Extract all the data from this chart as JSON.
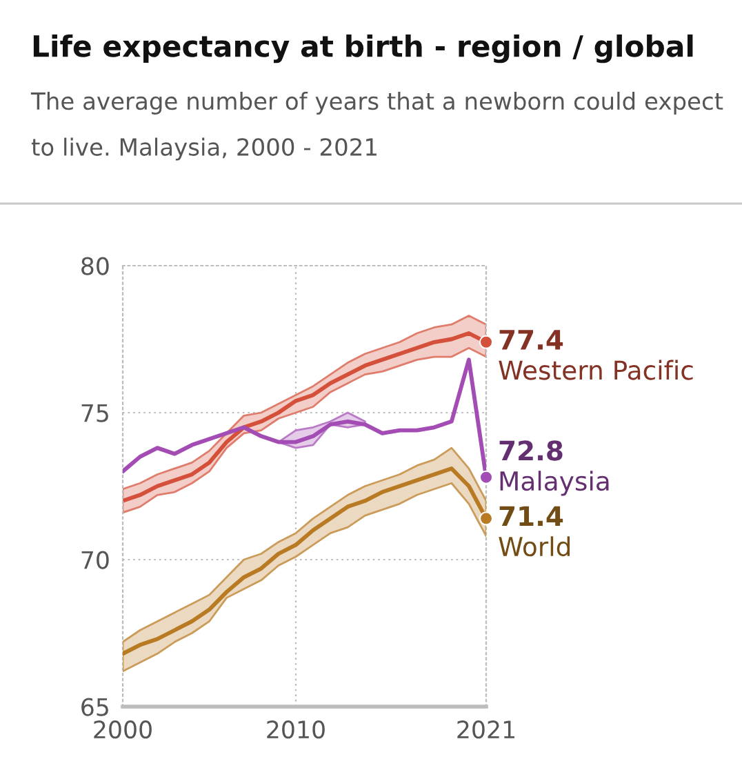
{
  "chart_data": {
    "type": "line",
    "title": "Life expectancy at birth - region / global",
    "subtitle": "The average number of years that a newborn could expect to live. Malaysia, 2000 - 2021",
    "x": [
      2000,
      2001,
      2002,
      2003,
      2004,
      2005,
      2006,
      2007,
      2008,
      2009,
      2010,
      2011,
      2012,
      2013,
      2014,
      2015,
      2016,
      2017,
      2018,
      2019,
      2020,
      2021
    ],
    "xlim": [
      2000,
      2021
    ],
    "xticks": [
      2000,
      2010,
      2021
    ],
    "ylim": [
      65,
      80
    ],
    "yticks": [
      65,
      70,
      75,
      80
    ],
    "grid": true,
    "line_style": "solid",
    "series": [
      {
        "name": "Western Pacific",
        "color": "#d4503a",
        "values": [
          72.0,
          72.2,
          72.5,
          72.7,
          72.9,
          73.3,
          74.0,
          74.5,
          74.7,
          75.0,
          75.4,
          75.6,
          76.0,
          76.3,
          76.6,
          76.8,
          77.0,
          77.2,
          77.4,
          77.5,
          77.7,
          77.4
        ],
        "lower": [
          71.6,
          71.8,
          72.2,
          72.3,
          72.6,
          73.0,
          73.8,
          74.3,
          74.4,
          74.8,
          75.0,
          75.2,
          75.7,
          76.0,
          76.3,
          76.4,
          76.6,
          76.8,
          76.9,
          76.9,
          77.2,
          76.9
        ],
        "upper": [
          72.4,
          72.6,
          72.9,
          73.1,
          73.3,
          73.7,
          74.3,
          74.9,
          75.0,
          75.3,
          75.6,
          75.9,
          76.3,
          76.7,
          77.0,
          77.2,
          77.4,
          77.7,
          77.9,
          78.0,
          78.3,
          78.0
        ],
        "value_labels": [
          null,
          null,
          null,
          null,
          null,
          null,
          null,
          null,
          null,
          null,
          null,
          null,
          null,
          null,
          null,
          null,
          null,
          null,
          null,
          null,
          null,
          "77.4"
        ]
      },
      {
        "name": "Malaysia",
        "color": "#a24cb4",
        "values": [
          73.0,
          73.5,
          73.8,
          73.6,
          73.9,
          74.1,
          74.3,
          74.5,
          74.2,
          74.0,
          74.0,
          74.2,
          74.6,
          74.7,
          74.6,
          74.3,
          74.4,
          74.4,
          74.5,
          74.7,
          76.8,
          72.8
        ],
        "lower": [
          null,
          null,
          null,
          null,
          null,
          null,
          null,
          null,
          null,
          74.0,
          73.8,
          73.9,
          74.6,
          74.5,
          74.6,
          null,
          null,
          null,
          null,
          null,
          null,
          null
        ],
        "upper": [
          null,
          null,
          null,
          null,
          null,
          null,
          null,
          null,
          null,
          74.0,
          74.4,
          74.5,
          74.7,
          75.0,
          74.7,
          null,
          null,
          null,
          null,
          null,
          null,
          null
        ],
        "value_labels": [
          null,
          null,
          null,
          null,
          null,
          null,
          null,
          null,
          null,
          null,
          null,
          null,
          null,
          null,
          null,
          null,
          null,
          null,
          null,
          null,
          null,
          "72.8"
        ]
      },
      {
        "name": "World",
        "color": "#b87a22",
        "values": [
          66.8,
          67.1,
          67.3,
          67.6,
          67.9,
          68.3,
          68.9,
          69.4,
          69.7,
          70.2,
          70.5,
          71.0,
          71.4,
          71.8,
          72.0,
          72.3,
          72.5,
          72.7,
          72.9,
          73.1,
          72.5,
          71.4
        ],
        "lower": [
          66.2,
          66.5,
          66.8,
          67.2,
          67.5,
          67.9,
          68.7,
          69.0,
          69.3,
          69.8,
          70.1,
          70.5,
          70.9,
          71.1,
          71.5,
          71.7,
          71.9,
          72.2,
          72.4,
          72.6,
          71.9,
          70.8
        ],
        "upper": [
          67.2,
          67.6,
          67.9,
          68.2,
          68.5,
          68.8,
          69.4,
          70.0,
          70.2,
          70.6,
          70.9,
          71.4,
          71.8,
          72.2,
          72.5,
          72.7,
          72.9,
          73.2,
          73.4,
          73.8,
          73.1,
          72.0
        ],
        "value_labels": [
          null,
          null,
          null,
          null,
          null,
          null,
          null,
          null,
          null,
          null,
          null,
          null,
          null,
          null,
          null,
          null,
          null,
          null,
          null,
          null,
          null,
          "71.4"
        ]
      }
    ]
  }
}
